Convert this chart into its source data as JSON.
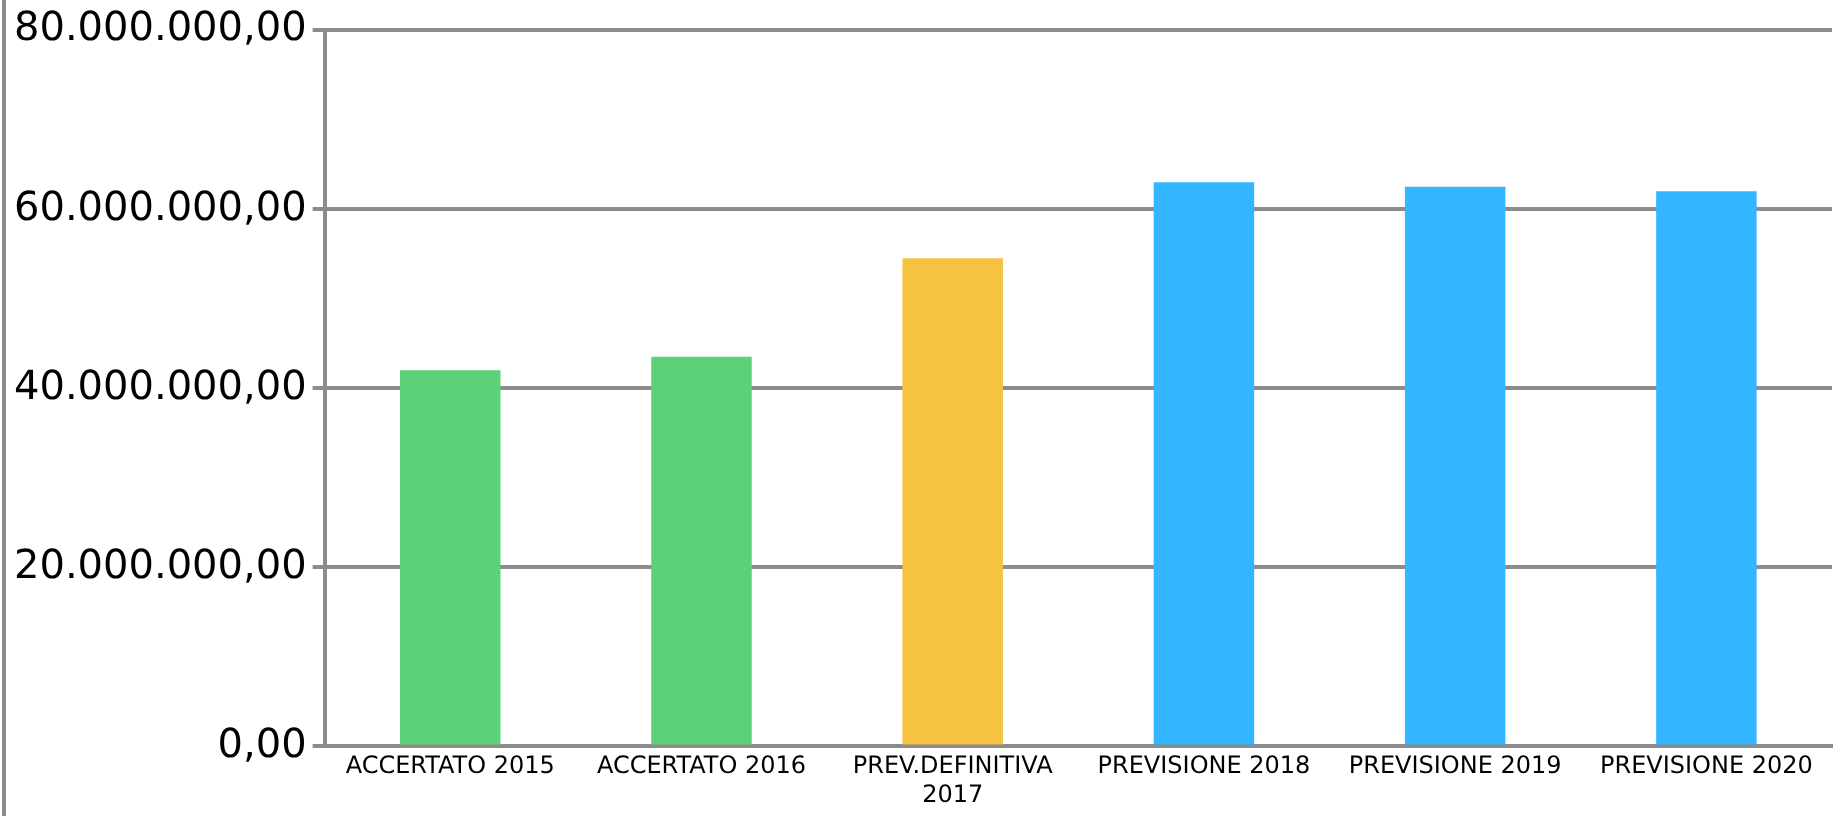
{
  "chart_data": {
    "type": "bar",
    "categories": [
      "ACCERTATO 2015",
      "ACCERTATO 2016",
      "PREV.DEFINITIVA 2017",
      "PREVISIONE 2018",
      "PREVISIONE 2019",
      "PREVISIONE 2020"
    ],
    "values": [
      42000000,
      43500000,
      54500000,
      63000000,
      62500000,
      62000000
    ],
    "colors": [
      "#5cd17a",
      "#5cd17a",
      "#f5c242",
      "#33b5ff",
      "#33b5ff",
      "#33b5ff"
    ],
    "ylim": [
      0,
      80000000
    ],
    "yticks": [
      {
        "value": 0,
        "label": "0,00"
      },
      {
        "value": 20000000,
        "label": "20.000.000,00"
      },
      {
        "value": 40000000,
        "label": "40.000.000,00"
      },
      {
        "value": 60000000,
        "label": "60.000.000,00"
      },
      {
        "value": 80000000,
        "label": "80.000.000,00"
      }
    ],
    "grid": "y",
    "legend": false
  }
}
